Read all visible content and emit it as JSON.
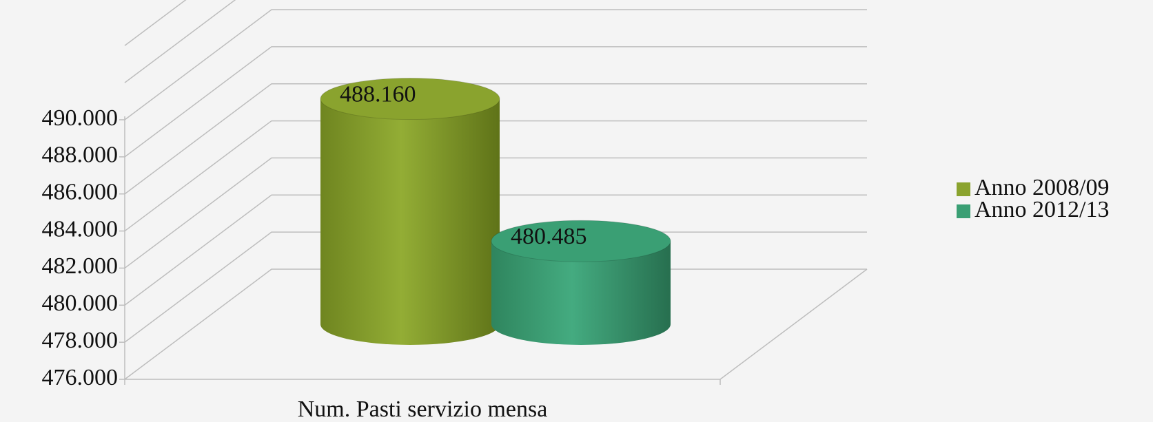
{
  "chart_data": {
    "type": "bar3d",
    "categories": [
      "Num. Pasti servizio mensa"
    ],
    "series": [
      {
        "name": "Anno 2008/09",
        "color": "#8aa32e",
        "values": [
          488160
        ],
        "value_labels": [
          "488.160"
        ]
      },
      {
        "name": "Anno 2012/13",
        "color": "#3a9f74",
        "values": [
          480485
        ],
        "value_labels": [
          "480.485"
        ]
      }
    ],
    "ylim": [
      476000,
      490000
    ],
    "yticks": [
      {
        "value": 476000,
        "label": "476.000"
      },
      {
        "value": 478000,
        "label": "478.000"
      },
      {
        "value": 480000,
        "label": "480.000"
      },
      {
        "value": 482000,
        "label": "482.000"
      },
      {
        "value": 484000,
        "label": "484.000"
      },
      {
        "value": 486000,
        "label": "486.000"
      },
      {
        "value": 488000,
        "label": "488.000"
      },
      {
        "value": 490000,
        "label": "490.000"
      }
    ],
    "grid": true,
    "legend": "right"
  }
}
